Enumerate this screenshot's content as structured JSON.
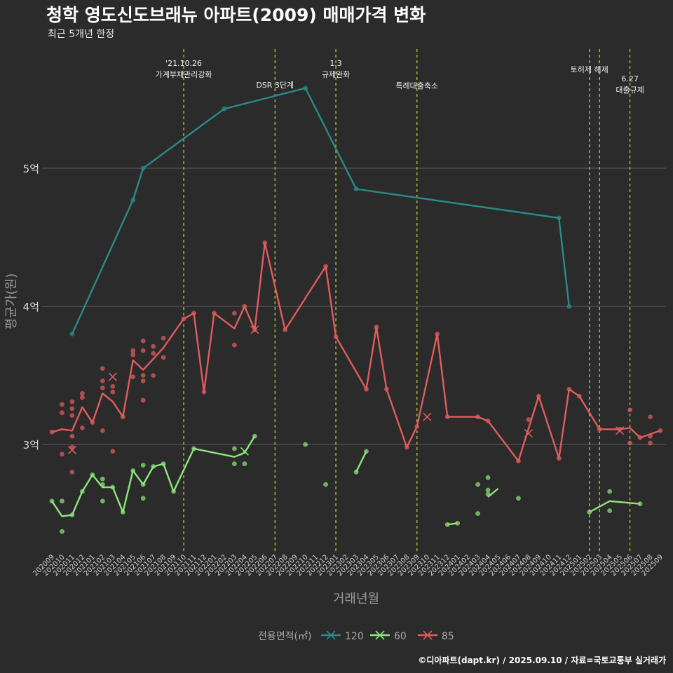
{
  "title": "청학 영도신도브래뉴 아파트(2009) 매매가격 변화",
  "subtitle": "최근 5개년 한정",
  "credit": "©디아파트(dapt.kr) / 2025.09.10 / 자료=국토교통부 실거래가",
  "chart_data": {
    "type": "line",
    "xlabel": "거래년월",
    "ylabel": "평균가(원)",
    "ylim": [
      2.2,
      5.9
    ],
    "y_ticks": [
      {
        "value": 3,
        "label": "3억"
      },
      {
        "value": 4,
        "label": "4억"
      },
      {
        "value": 5,
        "label": "5억"
      }
    ],
    "grid": true,
    "legend": {
      "title": "전용면적(㎡)",
      "position": "bottom"
    },
    "months": [
      "202009",
      "202010",
      "202011",
      "202012",
      "202101",
      "202102",
      "202103",
      "202104",
      "202105",
      "202106",
      "202107",
      "202108",
      "202109",
      "202110",
      "202111",
      "202112",
      "202201",
      "202202",
      "202203",
      "202204",
      "202205",
      "202206",
      "202207",
      "202208",
      "202209",
      "202210",
      "202211",
      "202212",
      "202301",
      "202302",
      "202303",
      "202304",
      "202305",
      "202306",
      "202307",
      "202308",
      "202309",
      "202310",
      "202311",
      "202312",
      "202401",
      "202402",
      "202403",
      "202404",
      "202405",
      "202406",
      "202407",
      "202408",
      "202409",
      "202410",
      "202411",
      "202412",
      "202501",
      "202502",
      "202503",
      "202504",
      "202505",
      "202506",
      "202507",
      "202508",
      "202509"
    ],
    "events": [
      {
        "month": "202110",
        "label": "'21.10.26\n가계부채관리강화"
      },
      {
        "month": "202207",
        "label": "DSR 3단계"
      },
      {
        "month": "202301",
        "label": "1.3\n규제완화"
      },
      {
        "month": "202309",
        "label": "특례대출축소"
      },
      {
        "month": "202502",
        "label": "토허제 해제"
      },
      {
        "month": "202503",
        "label": ""
      },
      {
        "month": "202506",
        "label": "6.27\n대출규제"
      }
    ],
    "series": [
      {
        "name": "120",
        "color": "#2a8a8a",
        "line": [
          [
            "202011",
            3.8
          ],
          [
            "202105",
            4.77
          ],
          [
            "202106",
            5.0
          ],
          [
            "202202",
            5.43
          ],
          [
            "202210",
            5.58
          ],
          [
            "202303",
            4.85
          ],
          [
            "202411",
            4.64
          ],
          [
            "202412",
            4.0
          ]
        ],
        "points": [
          [
            "202011",
            3.8
          ],
          [
            "202105",
            4.77
          ],
          [
            "202106",
            5.0
          ],
          [
            "202202",
            5.43
          ],
          [
            "202210",
            5.58
          ],
          [
            "202303",
            4.85
          ],
          [
            "202411",
            4.64
          ],
          [
            "202412",
            4.0
          ]
        ],
        "cancelled": []
      },
      {
        "name": "60",
        "color": "#8ee57a",
        "line": [
          [
            "202009",
            2.59
          ],
          [
            "202010",
            2.48
          ],
          [
            "202011",
            2.49
          ],
          [
            "202012",
            2.66
          ],
          [
            "202101",
            2.78
          ],
          [
            "202102",
            2.69
          ],
          [
            "202103",
            2.69
          ],
          [
            "202104",
            2.51
          ],
          [
            "202105",
            2.81
          ],
          [
            "202106",
            2.71
          ],
          [
            "202107",
            2.84
          ],
          [
            "202108",
            2.86
          ],
          [
            "202109",
            2.66
          ],
          [
            "202111",
            2.97
          ],
          [
            "202203",
            2.91
          ],
          [
            "202204",
            2.94
          ],
          [
            "202205",
            3.06
          ],
          null,
          [
            "202303",
            2.8
          ],
          [
            "202304",
            2.95
          ],
          null,
          [
            "202312",
            2.42
          ],
          [
            "202401",
            2.43
          ],
          null,
          [
            "202404",
            2.62
          ],
          [
            "202405",
            2.68
          ],
          null,
          [
            "202502",
            2.51
          ],
          [
            "202504",
            2.59
          ],
          [
            "202507",
            2.57
          ]
        ],
        "points": [
          [
            "202009",
            2.59
          ],
          [
            "202010",
            2.59
          ],
          [
            "202010",
            2.37
          ],
          [
            "202011",
            2.49
          ],
          [
            "202012",
            2.66
          ],
          [
            "202101",
            2.78
          ],
          [
            "202102",
            2.75
          ],
          [
            "202102",
            2.71
          ],
          [
            "202102",
            2.59
          ],
          [
            "202103",
            2.69
          ],
          [
            "202104",
            2.51
          ],
          [
            "202105",
            2.81
          ],
          [
            "202106",
            2.85
          ],
          [
            "202106",
            2.71
          ],
          [
            "202106",
            2.61
          ],
          [
            "202107",
            2.84
          ],
          [
            "202108",
            2.86
          ],
          [
            "202109",
            2.66
          ],
          [
            "202111",
            2.97
          ],
          [
            "202203",
            2.97
          ],
          [
            "202203",
            2.86
          ],
          [
            "202204",
            2.86
          ],
          [
            "202205",
            3.06
          ],
          [
            "202210",
            3.0
          ],
          [
            "202212",
            2.71
          ],
          [
            "202303",
            2.8
          ],
          [
            "202304",
            2.95
          ],
          [
            "202312",
            2.42
          ],
          [
            "202401",
            2.43
          ],
          [
            "202403",
            2.5
          ],
          [
            "202403",
            2.71
          ],
          [
            "202404",
            2.76
          ],
          [
            "202404",
            2.67
          ],
          [
            "202404",
            2.64
          ],
          [
            "202407",
            2.61
          ],
          [
            "202502",
            2.51
          ],
          [
            "202504",
            2.52
          ],
          [
            "202504",
            2.66
          ],
          [
            "202507",
            2.57
          ]
        ],
        "cancelled": [
          [
            "202204",
            2.95
          ]
        ]
      },
      {
        "name": "85",
        "color": "#e05c5c",
        "line": [
          [
            "202009",
            3.09
          ],
          [
            "202010",
            3.11
          ],
          [
            "202011",
            3.1
          ],
          [
            "202012",
            3.27
          ],
          [
            "202101",
            3.16
          ],
          [
            "202102",
            3.37
          ],
          [
            "202103",
            3.31
          ],
          [
            "202104",
            3.2
          ],
          [
            "202105",
            3.61
          ],
          [
            "202106",
            3.54
          ],
          [
            "202107",
            3.62
          ],
          [
            "202108",
            3.7
          ],
          [
            "202110",
            3.91
          ],
          [
            "202111",
            3.95
          ],
          [
            "202112",
            3.38
          ],
          [
            "202201",
            3.95
          ],
          [
            "202203",
            3.84
          ],
          [
            "202204",
            4.0
          ],
          [
            "202205",
            3.83
          ],
          [
            "202206",
            4.46
          ],
          [
            "202208",
            3.83
          ],
          [
            "202212",
            4.29
          ],
          [
            "202301",
            3.78
          ],
          [
            "202304",
            3.4
          ],
          [
            "202305",
            3.85
          ],
          [
            "202306",
            3.4
          ],
          [
            "202308",
            2.98
          ],
          [
            "202309",
            3.13
          ],
          [
            "202311",
            3.8
          ],
          [
            "202312",
            3.2
          ],
          [
            "202403",
            3.2
          ],
          [
            "202404",
            3.17
          ],
          [
            "202407",
            2.88
          ],
          [
            "202409",
            3.35
          ],
          [
            "202411",
            2.9
          ],
          [
            "202412",
            3.4
          ],
          [
            "202501",
            3.35
          ],
          [
            "202503",
            3.11
          ],
          [
            "202505",
            3.11
          ],
          [
            "202506",
            3.12
          ],
          [
            "202507",
            3.05
          ],
          [
            "202509",
            3.1
          ]
        ],
        "points": [
          [
            "202009",
            3.09
          ],
          [
            "202010",
            3.29
          ],
          [
            "202010",
            3.23
          ],
          [
            "202010",
            2.93
          ],
          [
            "202011",
            3.31
          ],
          [
            "202011",
            3.26
          ],
          [
            "202011",
            3.21
          ],
          [
            "202011",
            3.06
          ],
          [
            "202011",
            2.98
          ],
          [
            "202011",
            2.8
          ],
          [
            "202012",
            3.37
          ],
          [
            "202012",
            3.34
          ],
          [
            "202012",
            3.12
          ],
          [
            "202101",
            3.16
          ],
          [
            "202102",
            3.55
          ],
          [
            "202102",
            3.46
          ],
          [
            "202102",
            3.41
          ],
          [
            "202102",
            3.1
          ],
          [
            "202103",
            3.42
          ],
          [
            "202103",
            3.38
          ],
          [
            "202103",
            2.95
          ],
          [
            "202104",
            3.2
          ],
          [
            "202105",
            3.68
          ],
          [
            "202105",
            3.65
          ],
          [
            "202105",
            3.49
          ],
          [
            "202106",
            3.75
          ],
          [
            "202106",
            3.68
          ],
          [
            "202106",
            3.5
          ],
          [
            "202106",
            3.46
          ],
          [
            "202106",
            3.32
          ],
          [
            "202107",
            3.71
          ],
          [
            "202107",
            3.66
          ],
          [
            "202107",
            3.5
          ],
          [
            "202108",
            3.77
          ],
          [
            "202108",
            3.63
          ],
          [
            "202110",
            3.91
          ],
          [
            "202111",
            3.95
          ],
          [
            "202112",
            3.38
          ],
          [
            "202201",
            3.95
          ],
          [
            "202203",
            3.95
          ],
          [
            "202203",
            3.72
          ],
          [
            "202204",
            4.0
          ],
          [
            "202205",
            3.83
          ],
          [
            "202206",
            4.46
          ],
          [
            "202208",
            3.83
          ],
          [
            "202212",
            4.29
          ],
          [
            "202301",
            3.78
          ],
          [
            "202304",
            3.4
          ],
          [
            "202305",
            3.85
          ],
          [
            "202306",
            3.4
          ],
          [
            "202308",
            2.98
          ],
          [
            "202309",
            3.13
          ],
          [
            "202311",
            3.8
          ],
          [
            "202312",
            3.2
          ],
          [
            "202403",
            3.2
          ],
          [
            "202404",
            3.17
          ],
          [
            "202407",
            2.88
          ],
          [
            "202408",
            3.18
          ],
          [
            "202409",
            3.35
          ],
          [
            "202411",
            2.9
          ],
          [
            "202412",
            3.4
          ],
          [
            "202501",
            3.35
          ],
          [
            "202503",
            3.11
          ],
          [
            "202505",
            3.11
          ],
          [
            "202506",
            3.25
          ],
          [
            "202506",
            3.01
          ],
          [
            "202507",
            3.05
          ],
          [
            "202508",
            3.2
          ],
          [
            "202508",
            3.06
          ],
          [
            "202508",
            3.01
          ],
          [
            "202509",
            3.1
          ]
        ],
        "cancelled": [
          [
            "202011",
            2.96
          ],
          [
            "202103",
            3.49
          ],
          [
            "202205",
            3.83
          ],
          [
            "202310",
            3.2
          ],
          [
            "202408",
            3.08
          ],
          [
            "202505",
            3.1
          ]
        ]
      }
    ]
  }
}
